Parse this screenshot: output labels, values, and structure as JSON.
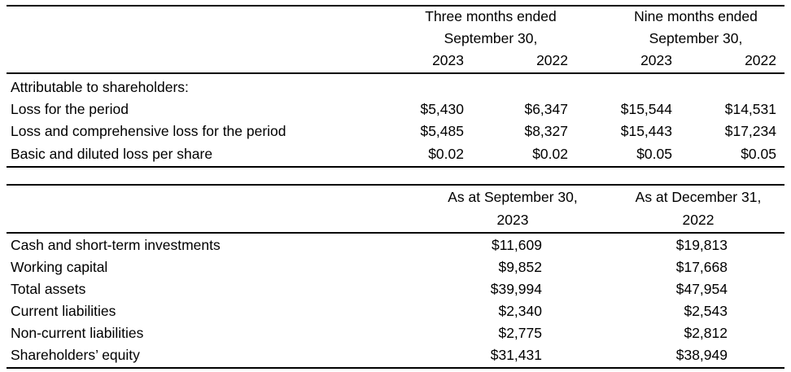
{
  "table1": {
    "header": {
      "three_months_line1": "Three months ended",
      "three_months_line2": "September 30,",
      "nine_months_line1": "Nine months ended",
      "nine_months_line2": "September 30,",
      "years": [
        "2023",
        "2022",
        "2023",
        "2022"
      ]
    },
    "section_label": "Attributable to shareholders:",
    "rows": [
      {
        "label": "Loss for the period",
        "values": [
          "$5,430",
          "$6,347",
          "$15,544",
          "$14,531"
        ]
      },
      {
        "label": "Loss and comprehensive loss for the period",
        "values": [
          "$5,485",
          "$8,327",
          "$15,443",
          "$17,234"
        ]
      },
      {
        "label": "Basic and diluted loss per share",
        "values": [
          "$0.02",
          "$0.02",
          "$0.05",
          "$0.05"
        ]
      }
    ]
  },
  "table2": {
    "header": {
      "col1_line1": "As at September 30,",
      "col1_line2": "2023",
      "col2_line1": "As at December 31,",
      "col2_line2": "2022"
    },
    "rows": [
      {
        "label": "Cash and short-term investments",
        "values": [
          "$11,609",
          "$19,813"
        ]
      },
      {
        "label": "Working capital",
        "values": [
          "$9,852",
          "$17,668"
        ]
      },
      {
        "label": "Total assets",
        "values": [
          "$39,994",
          "$47,954"
        ]
      },
      {
        "label": "Current liabilities",
        "values": [
          "$2,340",
          "$2,543"
        ]
      },
      {
        "label": "Non-current liabilities",
        "values": [
          "$2,775",
          "$2,812"
        ]
      },
      {
        "label": "Shareholders’ equity",
        "values": [
          "$31,431",
          "$38,949"
        ]
      }
    ]
  }
}
